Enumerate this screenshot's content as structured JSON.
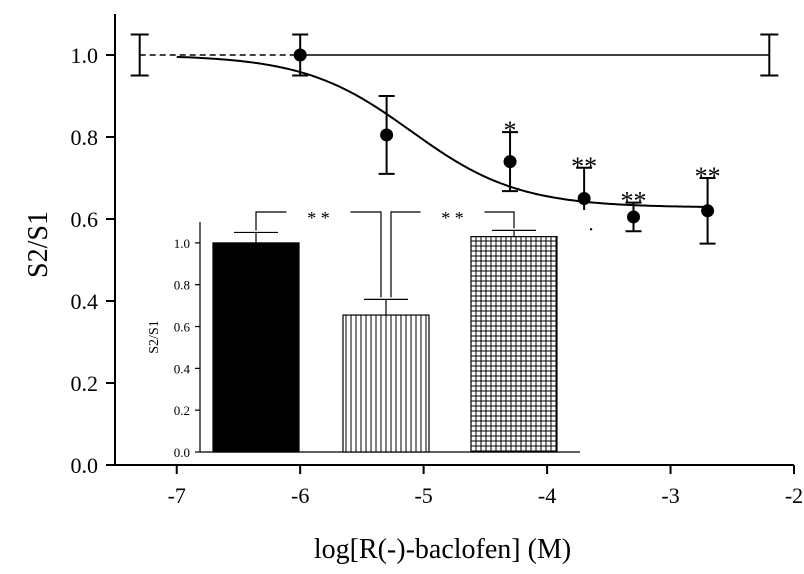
{
  "chart_data": [
    {
      "type": "scatter",
      "xlabel": "log[R(-)-baclofen] (M)",
      "ylabel": "S2/S1",
      "xlim": [
        -7.5,
        -2
      ],
      "ylim": [
        0,
        1.1
      ],
      "x_ticks": [
        "-7",
        "-6",
        "-5",
        "-4",
        "-3",
        "-2"
      ],
      "y_ticks": [
        "0.0",
        "0.2",
        "0.4",
        "0.6",
        "0.8",
        "1.0"
      ],
      "points": [
        {
          "x": -6.0,
          "y": 1.0,
          "err": 0.05,
          "sig": ""
        },
        {
          "x": -5.3,
          "y": 0.805,
          "err": 0.095,
          "sig": ""
        },
        {
          "x": -4.3,
          "y": 0.74,
          "err": 0.072,
          "sig": "*"
        },
        {
          "x": -3.7,
          "y": 0.65,
          "err": 0.075,
          "sig": "**"
        },
        {
          "x": -3.3,
          "y": 0.605,
          "err": 0.035,
          "sig": "**"
        },
        {
          "x": -2.7,
          "y": 0.62,
          "err": 0.08,
          "sig": "**"
        }
      ],
      "fit_curve": {
        "top": 1.0,
        "bottom": 0.628,
        "log_ec50": -5.1,
        "hill": 1.0,
        "x_start": -7.0,
        "x_end": -2.7
      },
      "control_line": {
        "y": 1.0,
        "err": 0.05,
        "x_start": -7.3,
        "x_end": -2.2,
        "dashed_until": -6.0
      }
    },
    {
      "type": "bar",
      "ylabel": "S2/S1",
      "ylim": [
        0,
        1.1
      ],
      "y_ticks": [
        "0.0",
        "0.2",
        "0.4",
        "0.6",
        "0.8",
        "1.0"
      ],
      "bars": [
        {
          "value": 1.0,
          "err": 0.05,
          "fill": "solid"
        },
        {
          "value": 0.655,
          "err": 0.075,
          "fill": "vertical-lines"
        },
        {
          "value": 1.03,
          "err": 0.03,
          "fill": "grid"
        }
      ],
      "significance": [
        {
          "label": "* *",
          "from": 0,
          "to": 1
        },
        {
          "label": "* *",
          "from": 1,
          "to": 2
        }
      ]
    }
  ]
}
